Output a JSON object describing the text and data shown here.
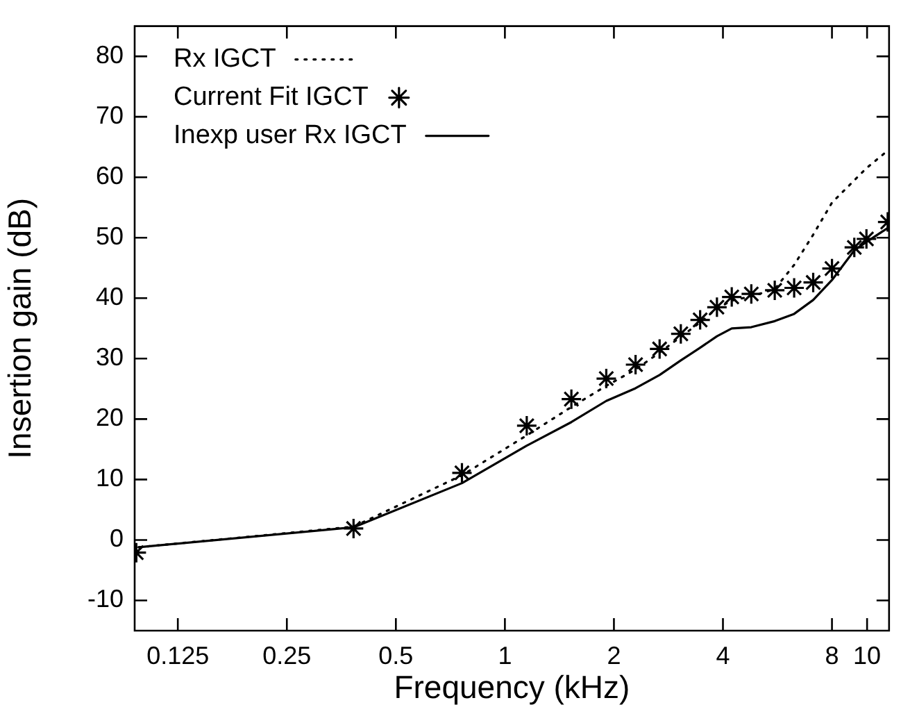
{
  "chart_data": {
    "type": "line",
    "xlabel": "Frequency (kHz)",
    "ylabel": "Insertion gain (dB)",
    "log": "x",
    "grid": false,
    "legend": "top left",
    "xlim": [
      0.095,
      11.5
    ],
    "ylim": [
      -15,
      85
    ],
    "xticks": [
      0.125,
      0.25,
      0.5,
      1,
      2,
      4,
      8,
      10
    ],
    "yticks": [
      -10,
      0,
      10,
      20,
      30,
      40,
      50,
      60,
      70,
      80
    ],
    "series": [
      {
        "name": "Rx IGCT",
        "color": "#000000",
        "line_style": "dotted",
        "marker": "none",
        "x": [
          0.0975,
          0.382,
          0.761,
          1.149,
          1.526,
          1.905,
          2.295,
          2.674,
          3.06,
          3.46,
          3.85,
          4.23,
          4.79,
          5.56,
          6.29,
          7.1,
          8.0,
          9.22,
          9.96,
          11.4
        ],
        "values": [
          -1.2,
          2.2,
          10.7,
          17.3,
          22,
          25.5,
          28.2,
          31,
          33.6,
          36,
          38.3,
          39.6,
          40.3,
          41.5,
          45.5,
          50.5,
          55.8,
          59.5,
          61.5,
          64.4
        ]
      },
      {
        "name": "Current Fit IGCT",
        "type": "scatter",
        "color": "#000000",
        "marker": "cross",
        "x": [
          0.096,
          0.382,
          0.761,
          1.149,
          1.526,
          1.905,
          2.295,
          2.674,
          3.06,
          3.46,
          3.85,
          4.23,
          4.79,
          5.56,
          6.29,
          7.1,
          8.0,
          9.22,
          9.96,
          11.4
        ],
        "values": [
          -2.1,
          1.9,
          11.1,
          18.9,
          23.3,
          26.7,
          29.0,
          31.6,
          34.1,
          36.4,
          38.5,
          40.2,
          40.7,
          41.3,
          41.7,
          42.6,
          44.9,
          48.4,
          49.8,
          52.6
        ]
      },
      {
        "name": "Inexp user Rx IGCT",
        "color": "#000000",
        "line_style": "solid",
        "marker": "none",
        "x": [
          0.0975,
          0.382,
          0.761,
          1.149,
          1.526,
          1.905,
          2.295,
          2.674,
          3.06,
          3.46,
          3.85,
          4.23,
          4.79,
          5.56,
          6.29,
          7.1,
          8.0,
          9.22,
          9.96,
          11.4
        ],
        "values": [
          -1.2,
          2.1,
          9.4,
          15.6,
          19.5,
          23.0,
          25.1,
          27.3,
          29.7,
          31.8,
          33.7,
          35.0,
          35.2,
          36.2,
          37.4,
          39.7,
          43.0,
          47.9,
          49.3,
          51.6
        ]
      }
    ]
  }
}
